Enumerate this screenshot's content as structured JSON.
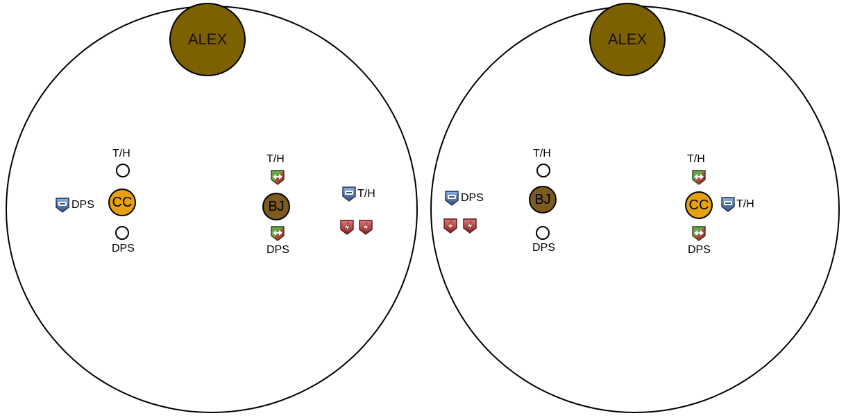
{
  "boss_name": "ALEX",
  "units": {
    "cc": "CC",
    "bj": "BJ"
  },
  "roles": {
    "tank_healer": "T/H",
    "dps": "DPS"
  },
  "icons": {
    "blue_shield": "blue-arrows-shield-icon",
    "green_shield": "green-red-arrows-shield-icon",
    "red_shield": "red-lightning-shield-icon"
  },
  "colors": {
    "boss": "#7d6101",
    "cc": "#e6a10f",
    "bj": "#7d5a1e",
    "blue_shield": "#4f6fa5",
    "green_shield": "#5f8f3a",
    "red_shield": "#b2373b"
  }
}
